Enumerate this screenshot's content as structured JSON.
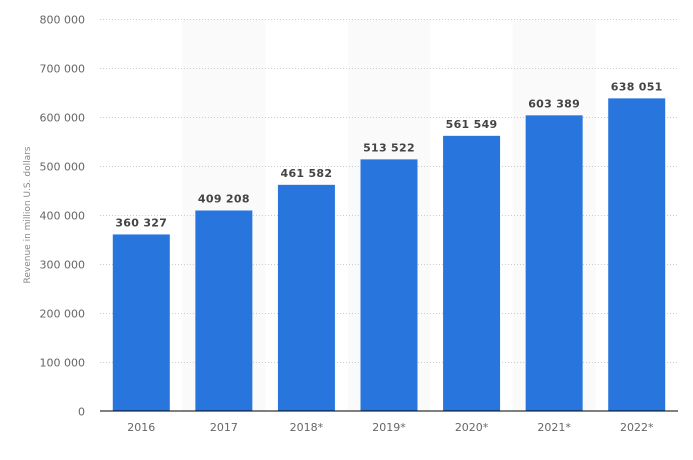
{
  "chart_data": {
    "type": "bar",
    "title": "",
    "xlabel": "",
    "ylabel": "Revenue in million U.S. dollars",
    "categories": [
      "2016",
      "2017",
      "2018*",
      "2019*",
      "2020*",
      "2021*",
      "2022*"
    ],
    "values": [
      360327,
      409208,
      461582,
      513522,
      561549,
      603389,
      638051
    ],
    "value_labels": [
      "360 327",
      "409 208",
      "461 582",
      "513 522",
      "561 549",
      "603 389",
      "638 051"
    ],
    "ylim": [
      0,
      800000
    ],
    "yticks": [
      0,
      100000,
      200000,
      300000,
      400000,
      500000,
      600000,
      700000,
      800000
    ],
    "ytick_labels": [
      "0",
      "100 000",
      "200 000",
      "300 000",
      "400 000",
      "500 000",
      "600 000",
      "700 000",
      "800 000"
    ],
    "grid": true,
    "legend": null,
    "colors": {
      "bar": "#2876dd",
      "grid": "#cccccc",
      "alt_column": "#fafafa",
      "axis": "#000000"
    }
  }
}
